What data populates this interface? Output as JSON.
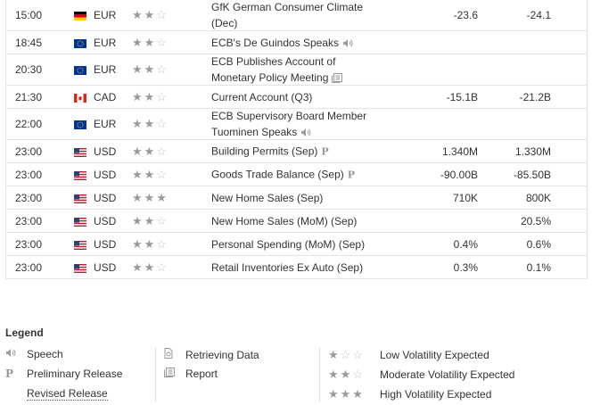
{
  "rows": [
    {
      "time": "15:00",
      "flag": "de",
      "currency": "EUR",
      "stars": 3,
      "stars_on": 2,
      "event_lines": [
        "GfK German Consumer Climate",
        "(Dec)"
      ],
      "icon": "",
      "actual": "-23.6",
      "forecast": "-24.1"
    },
    {
      "time": "18:45",
      "flag": "eu",
      "currency": "EUR",
      "stars": 3,
      "stars_on": 2,
      "event_lines": [
        "ECB's De Guindos Speaks"
      ],
      "icon": "speech",
      "actual": "",
      "forecast": ""
    },
    {
      "time": "20:30",
      "flag": "eu",
      "currency": "EUR",
      "stars": 3,
      "stars_on": 2,
      "event_lines": [
        "ECB Publishes Account of",
        "Monetary Policy Meeting"
      ],
      "icon": "report",
      "actual": "",
      "forecast": ""
    },
    {
      "time": "21:30",
      "flag": "ca",
      "currency": "CAD",
      "stars": 3,
      "stars_on": 2,
      "event_lines": [
        "Current Account (Q3)"
      ],
      "icon": "",
      "actual": "-15.1B",
      "forecast": "-21.2B"
    },
    {
      "time": "22:00",
      "flag": "eu",
      "currency": "EUR",
      "stars": 3,
      "stars_on": 2,
      "event_lines": [
        "ECB Supervisory Board Member",
        "Tuominen Speaks"
      ],
      "icon": "speech",
      "actual": "",
      "forecast": ""
    },
    {
      "time": "23:00",
      "flag": "us",
      "currency": "USD",
      "stars": 3,
      "stars_on": 2,
      "event_lines": [
        "Building Permits (Sep)"
      ],
      "icon": "preliminary",
      "actual": "1.340M",
      "forecast": "1.330M"
    },
    {
      "time": "23:00",
      "flag": "us",
      "currency": "USD",
      "stars": 3,
      "stars_on": 2,
      "event_lines": [
        "Goods Trade Balance (Sep)"
      ],
      "icon": "preliminary",
      "actual": "-90.00B",
      "forecast": "-85.50B"
    },
    {
      "time": "23:00",
      "flag": "us",
      "currency": "USD",
      "stars": 3,
      "stars_on": 3,
      "event_lines": [
        "New Home Sales (Sep)"
      ],
      "icon": "",
      "actual": "710K",
      "forecast": "800K"
    },
    {
      "time": "23:00",
      "flag": "us",
      "currency": "USD",
      "stars": 3,
      "stars_on": 2,
      "event_lines": [
        "New Home Sales (MoM) (Sep)"
      ],
      "icon": "",
      "actual": "",
      "forecast": "20.5%"
    },
    {
      "time": "23:00",
      "flag": "us",
      "currency": "USD",
      "stars": 3,
      "stars_on": 2,
      "event_lines": [
        "Personal Spending (MoM) (Sep)"
      ],
      "icon": "",
      "actual": "0.4%",
      "forecast": "0.6%"
    },
    {
      "time": "23:00",
      "flag": "us",
      "currency": "USD",
      "stars": 3,
      "stars_on": 2,
      "event_lines": [
        "Retail Inventories Ex Auto (Sep)"
      ],
      "icon": "",
      "actual": "0.3%",
      "forecast": "0.1%"
    }
  ],
  "legend": {
    "title": "Legend",
    "speech": "Speech",
    "preliminary": "Preliminary Release",
    "revised": "Revised Release",
    "retrieving": "Retrieving Data",
    "report": "Report",
    "low": "Low Volatility Expected",
    "moderate": "Moderate Volatility Expected",
    "high": "High Volatility Expected",
    "preliminary_mark": "P"
  },
  "colors": {
    "border": "#e3e3e3",
    "star_on": "#9a9a9a",
    "star_off": "#c4c4c4",
    "text": "#333333"
  }
}
